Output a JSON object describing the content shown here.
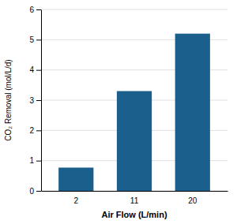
{
  "chart_data": {
    "type": "bar",
    "xlabel": "Air Flow (L/min)",
    "ylabel": "CO₂ Removal (mol/L/d)",
    "categories": [
      "2",
      "11",
      "20"
    ],
    "values": [
      0.77,
      3.3,
      5.2
    ],
    "color": "#1b5f8c",
    "ylim": [
      0,
      6
    ],
    "yticks": [
      0,
      1,
      2,
      3,
      4,
      5,
      6
    ],
    "grid": true
  }
}
